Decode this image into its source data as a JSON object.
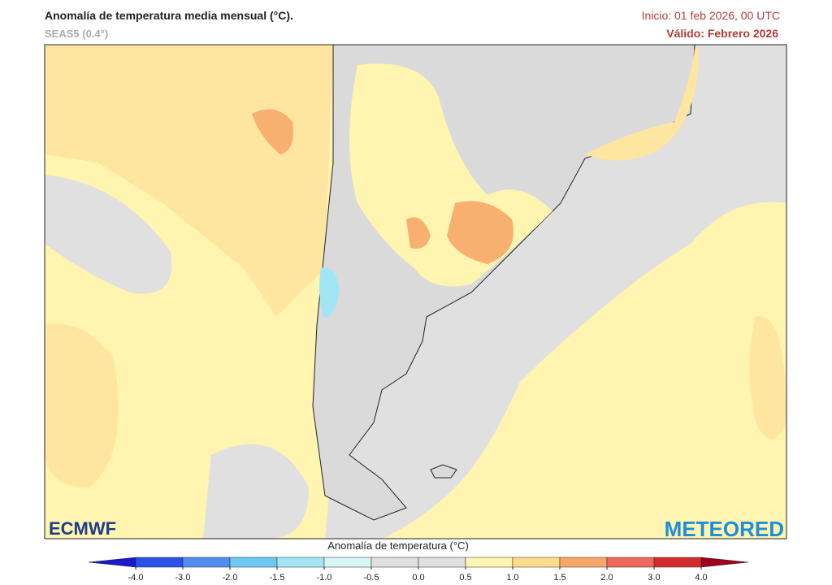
{
  "header": {
    "title": "Anomalía de temperatura media mensual (°C).",
    "subtitle": "SEAS5 (0.4°)",
    "init": "Inicio: 01 feb 2026, 00 UTC",
    "valid": "Válido: Febrero 2026"
  },
  "logos": {
    "left": "ECMWF",
    "right": "METEORED"
  },
  "colorbar": {
    "label": "Anomalía de temperatura (°C)",
    "ticks": [
      {
        "value": -4,
        "label": "-4.0"
      },
      {
        "value": -3,
        "label": "-3.0"
      },
      {
        "value": -2,
        "label": "-2.0"
      },
      {
        "value": -1.5,
        "label": "-1.5"
      },
      {
        "value": -1,
        "label": "-1.0"
      },
      {
        "value": -0.5,
        "label": "-0.5"
      },
      {
        "value": 0,
        "label": "0.0"
      },
      {
        "value": 0.5,
        "label": "0.5"
      },
      {
        "value": 1,
        "label": "1.0"
      },
      {
        "value": 1.5,
        "label": "1.5"
      },
      {
        "value": 2,
        "label": "2.0"
      },
      {
        "value": 3,
        "label": "3.0"
      },
      {
        "value": 4,
        "label": "4.0"
      }
    ],
    "colors": [
      "#2a52e6",
      "#4f8ef0",
      "#6ccaf2",
      "#a2e6f6",
      "#d6f5f5",
      "#e0e0e0",
      "#e0e0e0",
      "#fff4b0",
      "#ffdc8c",
      "#f7a868",
      "#ef6a5c",
      "#d42d2d"
    ],
    "under_color": "#1a1acc",
    "over_color": "#a0001e"
  }
}
